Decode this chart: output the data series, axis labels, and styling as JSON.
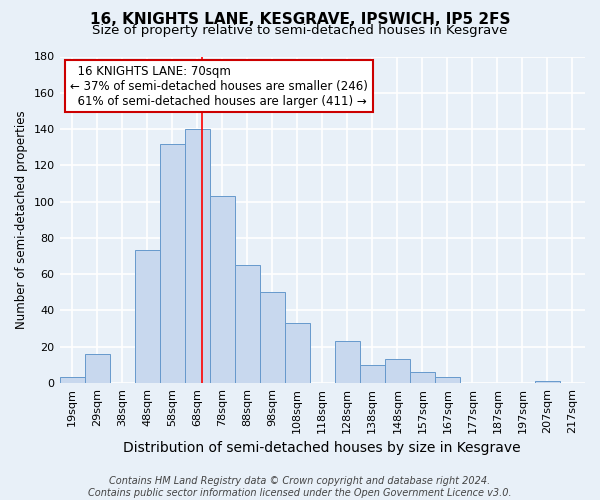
{
  "title": "16, KNIGHTS LANE, KESGRAVE, IPSWICH, IP5 2FS",
  "subtitle": "Size of property relative to semi-detached houses in Kesgrave",
  "xlabel": "Distribution of semi-detached houses by size in Kesgrave",
  "ylabel": "Number of semi-detached properties",
  "footer_line1": "Contains HM Land Registry data © Crown copyright and database right 2024.",
  "footer_line2": "Contains public sector information licensed under the Open Government Licence v3.0.",
  "bin_labels": [
    "19sqm",
    "29sqm",
    "38sqm",
    "48sqm",
    "58sqm",
    "68sqm",
    "78sqm",
    "88sqm",
    "98sqm",
    "108sqm",
    "118sqm",
    "128sqm",
    "138sqm",
    "148sqm",
    "157sqm",
    "167sqm",
    "177sqm",
    "187sqm",
    "197sqm",
    "207sqm",
    "217sqm"
  ],
  "bar_values": [
    3,
    16,
    0,
    73,
    132,
    140,
    103,
    65,
    50,
    33,
    0,
    23,
    10,
    13,
    6,
    3,
    0,
    0,
    0,
    1,
    0
  ],
  "bar_color": "#c8d8ee",
  "bar_edge_color": "#6699cc",
  "background_color": "#e8f0f8",
  "grid_color": "#ffffff",
  "ylim": [
    0,
    180
  ],
  "yticks": [
    0,
    20,
    40,
    60,
    80,
    100,
    120,
    140,
    160,
    180
  ],
  "red_line_x": 5.2,
  "annotation_title": "16 KNIGHTS LANE: 70sqm",
  "annotation_line1": "← 37% of semi-detached houses are smaller (246)",
  "annotation_line2": "61% of semi-detached houses are larger (411) →",
  "annotation_box_color": "#ffffff",
  "annotation_box_edge": "#cc0000",
  "title_fontsize": 11,
  "subtitle_fontsize": 9.5,
  "xlabel_fontsize": 10,
  "ylabel_fontsize": 8.5,
  "tick_fontsize": 8,
  "annotation_fontsize": 8.5,
  "footer_fontsize": 7
}
